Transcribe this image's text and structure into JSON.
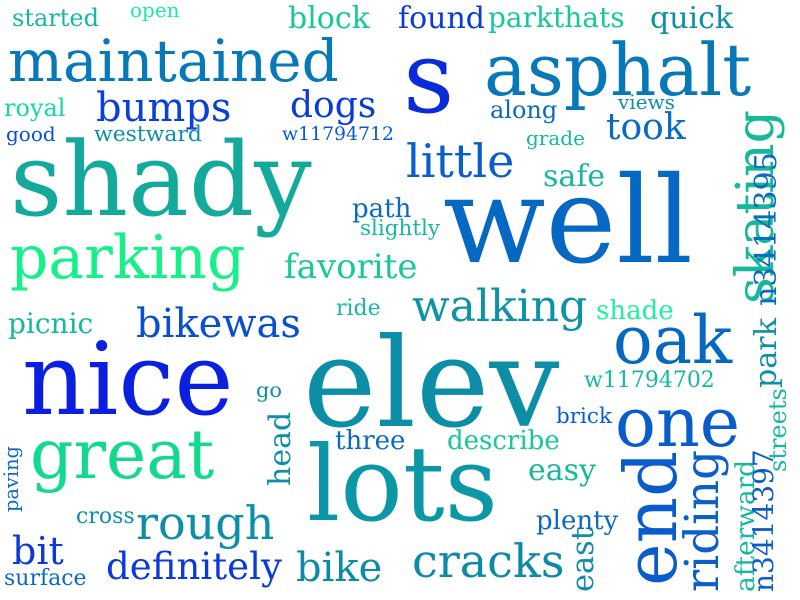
{
  "words": [
    {
      "text": "well",
      "color": "#0568c2"
    },
    {
      "text": "elev",
      "color": "#0b8ea6"
    },
    {
      "text": "s",
      "color": "#0a2bd8"
    },
    {
      "text": "nice",
      "color": "#0a1fe0"
    },
    {
      "text": "lots",
      "color": "#0b97a6"
    },
    {
      "text": "shady",
      "color": "#13a99b"
    },
    {
      "text": "asphalt",
      "color": "#0879b8"
    },
    {
      "text": "great",
      "color": "#12d98e"
    },
    {
      "text": "maintained",
      "color": "#0879b8"
    },
    {
      "text": "parking",
      "color": "#15f089"
    },
    {
      "text": "one",
      "color": "#0a5bcc"
    },
    {
      "text": "end",
      "color": "#0a5bcc"
    },
    {
      "text": "oak",
      "color": "#0768c0"
    },
    {
      "text": "rough",
      "color": "#0e8fa8"
    },
    {
      "text": "cracks",
      "color": "#0d8aa8"
    },
    {
      "text": "skating",
      "color": "#15b898"
    },
    {
      "text": "walking",
      "color": "#0d93a6"
    },
    {
      "text": "little",
      "color": "#0a5dcc"
    },
    {
      "text": "bike",
      "color": "#0d8aa8"
    },
    {
      "text": "riding",
      "color": "#0a60c8"
    },
    {
      "text": "bikewas",
      "color": "#0a4fd0"
    },
    {
      "text": "bumps",
      "color": "#0a3fd8"
    },
    {
      "text": "dogs",
      "color": "#0a3bd8"
    },
    {
      "text": "took",
      "color": "#0a6bc0"
    },
    {
      "text": "bit",
      "color": "#0a3bd8"
    },
    {
      "text": "definitely",
      "color": "#0a3bd8"
    },
    {
      "text": "favorite",
      "color": "#17c99a"
    },
    {
      "text": "found",
      "color": "#0a3bd8"
    },
    {
      "text": "block",
      "color": "#15c99a"
    },
    {
      "text": "quick",
      "color": "#0e8fa8"
    },
    {
      "text": "parkthats",
      "color": "#15c99a"
    },
    {
      "text": "safe",
      "color": "#15b8a0"
    },
    {
      "text": "easy",
      "color": "#15b8a0"
    },
    {
      "text": "three",
      "color": "#0a6bc0"
    },
    {
      "text": "describe",
      "color": "#15c99a"
    },
    {
      "text": "plenty",
      "color": "#0a6bc0"
    },
    {
      "text": "path",
      "color": "#0a6bc0"
    },
    {
      "text": "slightly",
      "color": "#15b8a0"
    },
    {
      "text": "ride",
      "color": "#15b8a0"
    },
    {
      "text": "shade",
      "color": "#20f0a0"
    },
    {
      "text": "picnic",
      "color": "#15b8a0"
    },
    {
      "text": "royal",
      "color": "#15d9a0"
    },
    {
      "text": "good",
      "color": "#0a4fd0"
    },
    {
      "text": "westward",
      "color": "#0e8fa8"
    },
    {
      "text": "started",
      "color": "#15b8a0"
    },
    {
      "text": "open",
      "color": "#15f0a0"
    },
    {
      "text": "along",
      "color": "#0a6bc0"
    },
    {
      "text": "grade",
      "color": "#15b8a0"
    },
    {
      "text": "views",
      "color": "#0e8fa8"
    },
    {
      "text": "w11794712",
      "color": "#0a5bcc"
    },
    {
      "text": "n3414395",
      "color": "#0a6bc0"
    },
    {
      "text": "w11794702",
      "color": "#15b8a0"
    },
    {
      "text": "park",
      "color": "#0e8fa8"
    },
    {
      "text": "go",
      "color": "#0e8fa8"
    },
    {
      "text": "head",
      "color": "#0e8fa8"
    },
    {
      "text": "brick",
      "color": "#0a5bcc"
    },
    {
      "text": "east",
      "color": "#0e8fa8"
    },
    {
      "text": "afterward",
      "color": "#15b8a0"
    },
    {
      "text": "n3414397",
      "color": "#0a5bcc"
    },
    {
      "text": "streets",
      "color": "#15b8a0"
    },
    {
      "text": "paving",
      "color": "#0a6bc0"
    },
    {
      "text": "surface",
      "color": "#0a6bc0"
    },
    {
      "text": "cross",
      "color": "#0e8fa8"
    }
  ]
}
